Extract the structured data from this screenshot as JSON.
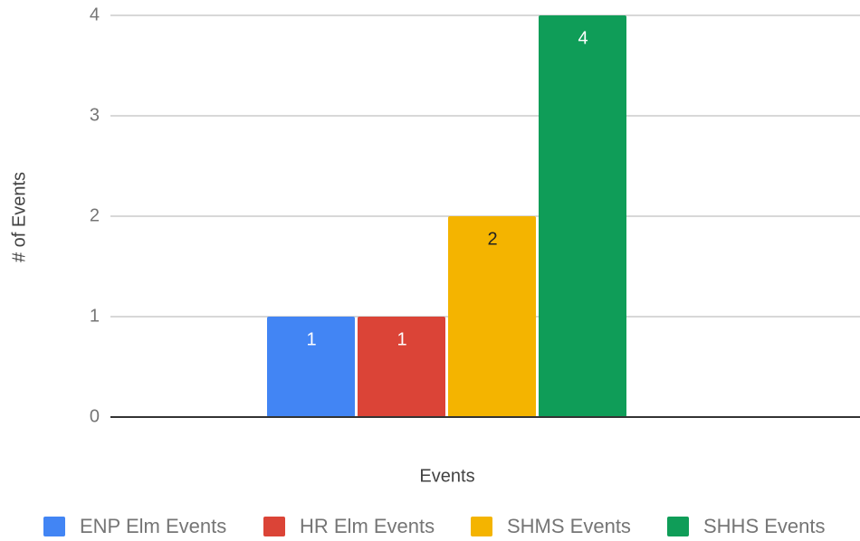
{
  "chart_data": {
    "type": "bar",
    "y_label": "# of Events",
    "categories": [
      "Events"
    ],
    "series": [
      {
        "name": "ENP Elm Events",
        "color": "#4285f4",
        "values": [
          1
        ]
      },
      {
        "name": "HR Elm Events",
        "color": "#db4437",
        "values": [
          1
        ]
      },
      {
        "name": "SHMS Events",
        "color": "#f4b400",
        "values": [
          2
        ]
      },
      {
        "name": "SHHS Events",
        "color": "#0f9d58",
        "values": [
          4
        ]
      }
    ],
    "ylim": [
      0,
      4
    ],
    "yticks": [
      0,
      1,
      2,
      3,
      4
    ],
    "grid": true,
    "legend": "bottom"
  }
}
